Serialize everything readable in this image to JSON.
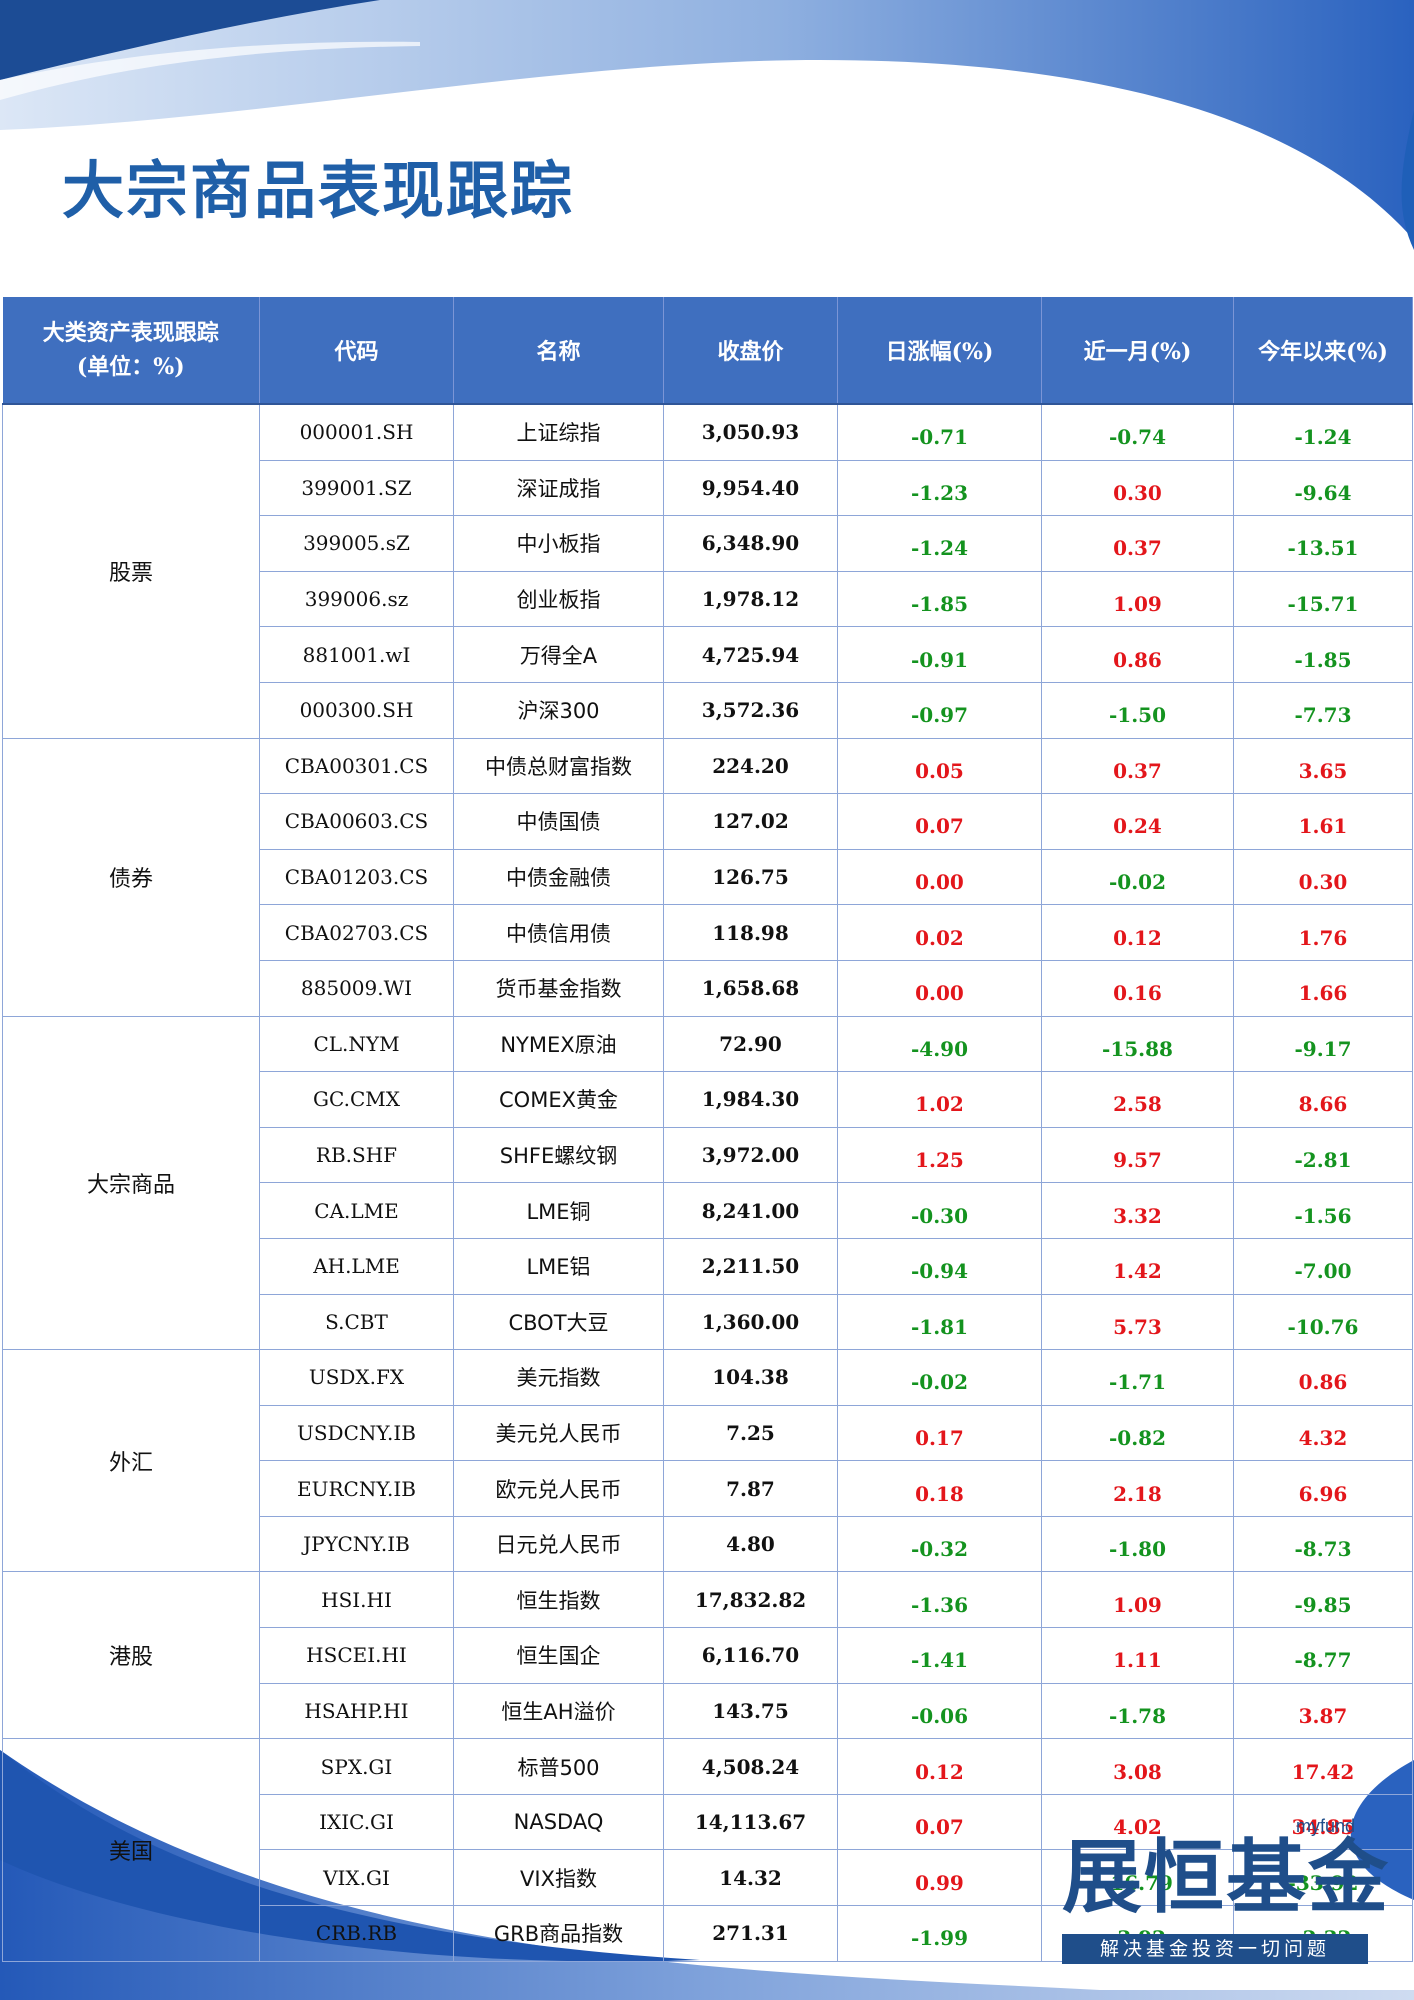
{
  "page": {
    "title": "大宗商品表现跟踪"
  },
  "table": {
    "headers": {
      "category_line1": "大类资产表现跟踪",
      "category_line2": "(单位：%)",
      "code": "代码",
      "name": "名称",
      "close": "收盘价",
      "daily": "日涨幅(%)",
      "month": "近一月(%)",
      "ytd": "今年以来(%)"
    },
    "groups": [
      {
        "category": "股票",
        "rows": [
          {
            "code": "000001.SH",
            "name": "上证综指",
            "close": "3,050.93",
            "daily": "-0.71",
            "month": "-0.74",
            "ytd": "-1.24"
          },
          {
            "code": "399001.SZ",
            "name": "深证成指",
            "close": "9,954.40",
            "daily": "-1.23",
            "month": "0.30",
            "ytd": "-9.64"
          },
          {
            "code": "399005.sZ",
            "name": "中小板指",
            "close": "6,348.90",
            "daily": "-1.24",
            "month": "0.37",
            "ytd": "-13.51"
          },
          {
            "code": "399006.sz",
            "name": "创业板指",
            "close": "1,978.12",
            "daily": "-1.85",
            "month": "1.09",
            "ytd": "-15.71"
          },
          {
            "code": "881001.wI",
            "name": "万得全A",
            "close": "4,725.94",
            "daily": "-0.91",
            "month": "0.86",
            "ytd": "-1.85"
          },
          {
            "code": "000300.SH",
            "name": "沪深300",
            "close": "3,572.36",
            "daily": "-0.97",
            "month": "-1.50",
            "ytd": "-7.73"
          }
        ]
      },
      {
        "category": "债券",
        "rows": [
          {
            "code": "CBA00301.CS",
            "name": "中债总财富指数",
            "close": "224.20",
            "daily": "0.05",
            "month": "0.37",
            "ytd": "3.65"
          },
          {
            "code": "CBA00603.CS",
            "name": "中债国债",
            "close": "127.02",
            "daily": "0.07",
            "month": "0.24",
            "ytd": "1.61"
          },
          {
            "code": "CBA01203.CS",
            "name": "中债金融债",
            "close": "126.75",
            "daily": "0.00",
            "month": "-0.02",
            "ytd": "0.30"
          },
          {
            "code": "CBA02703.CS",
            "name": "中债信用债",
            "close": "118.98",
            "daily": "0.02",
            "month": "0.12",
            "ytd": "1.76"
          },
          {
            "code": "885009.WI",
            "name": "货币基金指数",
            "close": "1,658.68",
            "daily": "0.00",
            "month": "0.16",
            "ytd": "1.66"
          }
        ]
      },
      {
        "category": "大宗商品",
        "rows": [
          {
            "code": "CL.NYM",
            "name": "NYMEX原油",
            "close": "72.90",
            "daily": "-4.90",
            "month": "-15.88",
            "ytd": "-9.17"
          },
          {
            "code": "GC.CMX",
            "name": "COMEX黄金",
            "close": "1,984.30",
            "daily": "1.02",
            "month": "2.58",
            "ytd": "8.66"
          },
          {
            "code": "RB.SHF",
            "name": "SHFE螺纹钢",
            "close": "3,972.00",
            "daily": "1.25",
            "month": "9.57",
            "ytd": "-2.81"
          },
          {
            "code": "CA.LME",
            "name": "LME铜",
            "close": "8,241.00",
            "daily": "-0.30",
            "month": "3.32",
            "ytd": "-1.56"
          },
          {
            "code": "AH.LME",
            "name": "LME铝",
            "close": "2,211.50",
            "daily": "-0.94",
            "month": "1.42",
            "ytd": "-7.00"
          },
          {
            "code": "S.CBT",
            "name": "CBOT大豆",
            "close": "1,360.00",
            "daily": "-1.81",
            "month": "5.73",
            "ytd": "-10.76"
          }
        ]
      },
      {
        "category": "外汇",
        "rows": [
          {
            "code": "USDX.FX",
            "name": "美元指数",
            "close": "104.38",
            "daily": "-0.02",
            "month": "-1.71",
            "ytd": "0.86"
          },
          {
            "code": "USDCNY.IB",
            "name": "美元兑人民币",
            "close": "7.25",
            "daily": "0.17",
            "month": "-0.82",
            "ytd": "4.32"
          },
          {
            "code": "EURCNY.IB",
            "name": "欧元兑人民币",
            "close": "7.87",
            "daily": "0.18",
            "month": "2.18",
            "ytd": "6.96"
          },
          {
            "code": "JPYCNY.IB",
            "name": "日元兑人民币",
            "close": "4.80",
            "daily": "-0.32",
            "month": "-1.80",
            "ytd": "-8.73"
          }
        ]
      },
      {
        "category": "港股",
        "rows": [
          {
            "code": "HSI.HI",
            "name": "恒生指数",
            "close": "17,832.82",
            "daily": "-1.36",
            "month": "1.09",
            "ytd": "-9.85"
          },
          {
            "code": "HSCEI.HI",
            "name": "恒生国企",
            "close": "6,116.70",
            "daily": "-1.41",
            "month": "1.11",
            "ytd": "-8.77"
          },
          {
            "code": "HSAHP.HI",
            "name": "恒生AH溢价",
            "close": "143.75",
            "daily": "-0.06",
            "month": "-1.78",
            "ytd": "3.87"
          }
        ]
      },
      {
        "category": "美国",
        "rows": [
          {
            "code": "SPX.GI",
            "name": "标普500",
            "close": "4,508.24",
            "daily": "0.12",
            "month": "3.08",
            "ytd": "17.42"
          },
          {
            "code": "IXIC.GI",
            "name": "NASDAQ",
            "close": "14,113.67",
            "daily": "0.07",
            "month": "4.02",
            "ytd": "34.85"
          },
          {
            "code": "VIX.GI",
            "name": "VIX指数",
            "close": "14.32",
            "daily": "0.99",
            "month": "-16.79",
            "ytd": "-33.92"
          },
          {
            "code": "CRB.RB",
            "name": "GRB商品指数",
            "close": "271.31",
            "daily": "-1.99",
            "month": "-3.92",
            "ytd": "-2.32"
          }
        ]
      }
    ]
  },
  "brand": {
    "small": "myfund",
    "main": "展恒基金",
    "tagline": "解决基金投资一切问题"
  },
  "colors": {
    "primary": "#1f5fa8",
    "header_bg": "#3f6fbf",
    "positive": "#e3161b",
    "negative": "#14931f"
  }
}
